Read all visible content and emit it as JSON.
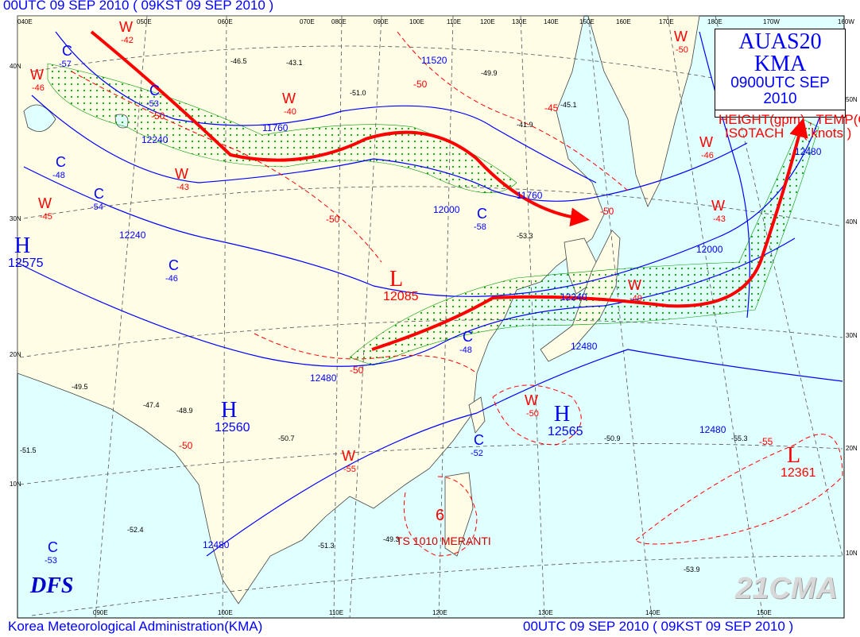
{
  "header": {
    "top_title": "00UTC 09 SEP 2010 ( 09KST 09 SEP 2010 )",
    "footer_left": "Korea Meteorological Administration(KMA)",
    "footer_right": "00UTC 09 SEP 2010 ( 09KST 09 SEP 2010 )"
  },
  "legend": {
    "product": "AUAS20 KMA",
    "valid": "0900UTC SEP 2010",
    "fields": "HEIGHT(gpm) , TEMP(C)",
    "isotach": "ISOTACH",
    "isotach_unit": "( knots )"
  },
  "colors": {
    "ocean": "#e0ffff",
    "land": "#fffde6",
    "height": "#0000ff",
    "temp": "#ff0000",
    "jet": "#ff0000",
    "isotach_area": "#00aa00"
  },
  "lon_top": [
    "040E",
    "050E",
    "060E",
    "070E",
    "080E",
    "090E",
    "100E",
    "110E",
    "120E",
    "130E",
    "140E",
    "150E",
    "160E",
    "170E",
    "180E",
    "170W",
    "160W"
  ],
  "lon_bottom": [
    "090E",
    "100E",
    "110E",
    "120E",
    "130E",
    "140E",
    "150E"
  ],
  "lat_left": [
    "40N",
    "30N",
    "20N",
    "10N"
  ],
  "lat_right": [
    "50N",
    "40N",
    "30N",
    "20N",
    "10N"
  ],
  "centers": [
    {
      "type": "H",
      "value": "12575"
    },
    {
      "type": "H",
      "value": "12560"
    },
    {
      "type": "H",
      "value": "12565"
    },
    {
      "type": "L",
      "value": "12085"
    },
    {
      "type": "L",
      "value": "12361"
    }
  ],
  "cold_centers": [
    "-57",
    "-53",
    "-48",
    "-46",
    "-58",
    "-48",
    "-52",
    "-53",
    "-54"
  ],
  "warm_centers": [
    "-42",
    "-46",
    "-40",
    "-43",
    "-45",
    "-43",
    "-46",
    "-49",
    "-50",
    "-55",
    "-50"
  ],
  "height_contours": [
    "11520",
    "11760",
    "11760",
    "12000",
    "12000",
    "12240",
    "12240",
    "12240",
    "12480",
    "12480",
    "12480",
    "12480",
    "12480"
  ],
  "temp_contours": [
    "-50",
    "-45",
    "-50",
    "-50",
    "-50",
    "-50",
    "-50",
    "-55"
  ],
  "typhoon": {
    "symbol": "6",
    "label": "TS 1010 MERANTI"
  },
  "branding": {
    "logo": "DFS",
    "watermark": "21CMA"
  },
  "stations": [
    "-49.9",
    "-46.5",
    "-43.1",
    "-45.1",
    "-41.9",
    "-51.0",
    "-53.3",
    "-49.5",
    "-48.9",
    "-50.7",
    "-51.3",
    "-52.4",
    "-53.9",
    "-50.9",
    "-55.3",
    "-51.5",
    "-47.4",
    "-49.3"
  ]
}
